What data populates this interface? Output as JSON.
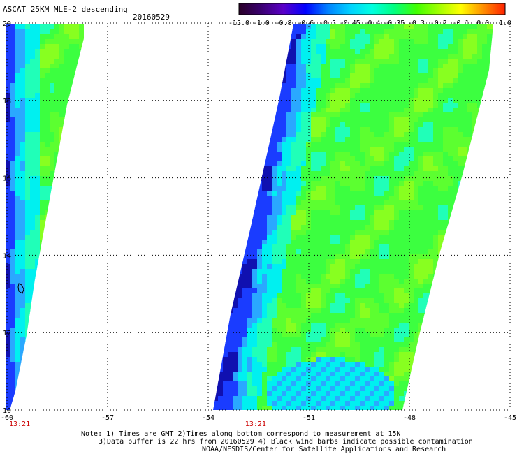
{
  "header": {
    "title": "ASCAT 25KM MLE-2 descending",
    "date": "20160529"
  },
  "colorbar": {
    "labels": [
      "-15.0",
      "-1.0",
      "-0.8",
      "-0.6",
      "-0.5",
      "-0.45",
      "-0.4",
      "-0.35",
      "-0.3",
      "-0.2",
      "-0.1",
      "0.0",
      "1.0"
    ],
    "colors": [
      "#2a0028",
      "#3a0070",
      "#5a00c8",
      "#0000ff",
      "#0080ff",
      "#00d0ff",
      "#00ffe0",
      "#00ff80",
      "#40ff00",
      "#a0ff00",
      "#ffff00",
      "#ff9000",
      "#ff2000"
    ]
  },
  "axes": {
    "lon_ticks": [
      {
        "value": -60,
        "label": "-60"
      },
      {
        "value": -57,
        "label": "-57"
      },
      {
        "value": -54,
        "label": "-54"
      },
      {
        "value": -51,
        "label": "-51"
      },
      {
        "value": -48,
        "label": "-48"
      },
      {
        "value": -45,
        "label": "-45"
      }
    ],
    "lat_ticks": [
      {
        "value": 20,
        "label": "20"
      },
      {
        "value": 18,
        "label": "18"
      },
      {
        "value": 16,
        "label": "16"
      },
      {
        "value": 14,
        "label": "14"
      },
      {
        "value": 12,
        "label": "12"
      },
      {
        "value": 10,
        "label": "10"
      }
    ],
    "lon_range": [
      -60,
      -45
    ],
    "lat_range": [
      10,
      20
    ],
    "grid": "dotted"
  },
  "swaths": [
    {
      "name": "west-swath",
      "time_label": "13:21",
      "time_lon": -60
    },
    {
      "name": "east-swath",
      "time_label": "13:21",
      "time_lon": -52.9
    }
  ],
  "notes": {
    "line1": "Note: 1) Times are GMT 2)Times along bottom correspond to measurement at 15N",
    "line2": "3)Data buffer is 22 hrs from 20160529 4) Black wind barbs indicate possible contamination",
    "line3": "NOAA/NESDIS/Center for Satellite Applications and Research"
  },
  "style": {
    "time_color": "#cc0000",
    "grid_color": "#000000"
  }
}
